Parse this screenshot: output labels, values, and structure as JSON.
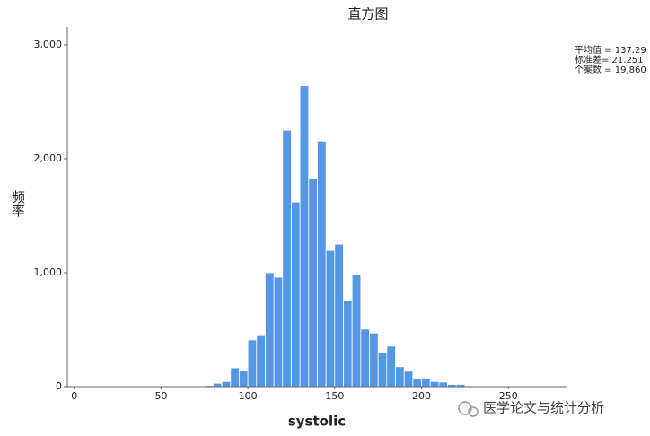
{
  "chart_data": {
    "type": "histogram",
    "title": "直方图",
    "x_label": "systolic",
    "y_label": "频率",
    "bins": [
      70,
      75,
      80,
      85,
      90,
      95,
      100,
      105,
      110,
      115,
      120,
      125,
      130,
      135,
      140,
      145,
      150,
      155,
      160,
      165,
      170,
      175,
      180,
      185,
      190,
      195,
      200,
      205,
      210,
      215,
      220,
      225,
      230,
      235
    ],
    "values": [
      3,
      10,
      30,
      45,
      165,
      140,
      410,
      455,
      1000,
      960,
      2250,
      1620,
      2640,
      1830,
      2155,
      1195,
      1250,
      755,
      985,
      505,
      470,
      300,
      355,
      175,
      135,
      70,
      75,
      45,
      40,
      20,
      20,
      8,
      5
    ],
    "color": "#5596e6",
    "xlim": [
      -4,
      284
    ],
    "xticks": [
      0,
      50,
      100,
      150,
      200,
      250
    ],
    "ylim": [
      0,
      3157
    ],
    "yticks": [
      0,
      {
        "value": 1000,
        "label": "1,000"
      },
      {
        "value": 2000,
        "label": "2,000"
      },
      {
        "value": 3000,
        "label": "3,000"
      }
    ],
    "annotations": [
      "平均值 = 137.29",
      "标准差= 21.251",
      "个案数 = 19,860"
    ]
  },
  "watermark": "医学论文与统计分析"
}
